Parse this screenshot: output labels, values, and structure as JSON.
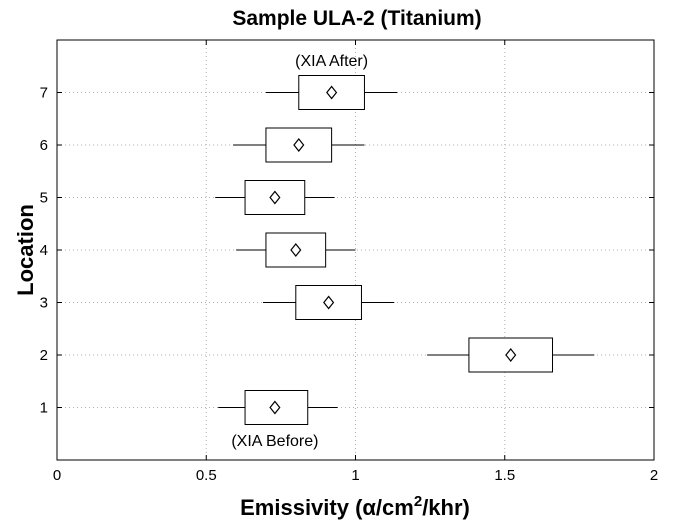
{
  "chart_data": {
    "type": "boxplot",
    "orientation": "horizontal",
    "title": "Sample ULA-2 (Titanium)",
    "xlabel_main": "Emissivity (α/cm",
    "xlabel_sup": "2",
    "xlabel_tail": "/khr)",
    "ylabel": "Location",
    "xlim": [
      0,
      2
    ],
    "ylim": [
      0,
      8
    ],
    "xticks": [
      0,
      0.5,
      1,
      1.5,
      2
    ],
    "xtick_labels": [
      "0",
      "0.5",
      "1",
      "1.5",
      "2"
    ],
    "yticks": [
      1,
      2,
      3,
      4,
      5,
      6,
      7
    ],
    "ytick_labels": [
      "1",
      "2",
      "3",
      "4",
      "5",
      "6",
      "7"
    ],
    "grid": true,
    "series": [
      {
        "location": 1,
        "whisker_low": 0.54,
        "q1": 0.63,
        "median": 0.73,
        "q3": 0.84,
        "whisker_high": 0.94
      },
      {
        "location": 2,
        "whisker_low": 1.24,
        "q1": 1.38,
        "median": 1.52,
        "q3": 1.66,
        "whisker_high": 1.8
      },
      {
        "location": 3,
        "whisker_low": 0.69,
        "q1": 0.8,
        "median": 0.91,
        "q3": 1.02,
        "whisker_high": 1.13
      },
      {
        "location": 4,
        "whisker_low": 0.6,
        "q1": 0.7,
        "median": 0.8,
        "q3": 0.9,
        "whisker_high": 1.0
      },
      {
        "location": 5,
        "whisker_low": 0.53,
        "q1": 0.63,
        "median": 0.73,
        "q3": 0.83,
        "whisker_high": 0.93
      },
      {
        "location": 6,
        "whisker_low": 0.59,
        "q1": 0.7,
        "median": 0.81,
        "q3": 0.92,
        "whisker_high": 1.03
      },
      {
        "location": 7,
        "whisker_low": 0.7,
        "q1": 0.81,
        "median": 0.92,
        "q3": 1.03,
        "whisker_high": 1.14
      }
    ],
    "annotations": [
      {
        "text": "(XIA After)",
        "x": 0.92,
        "y": 7.62
      },
      {
        "text": "(XIA Before)",
        "x": 0.73,
        "y": 0.38
      }
    ]
  }
}
